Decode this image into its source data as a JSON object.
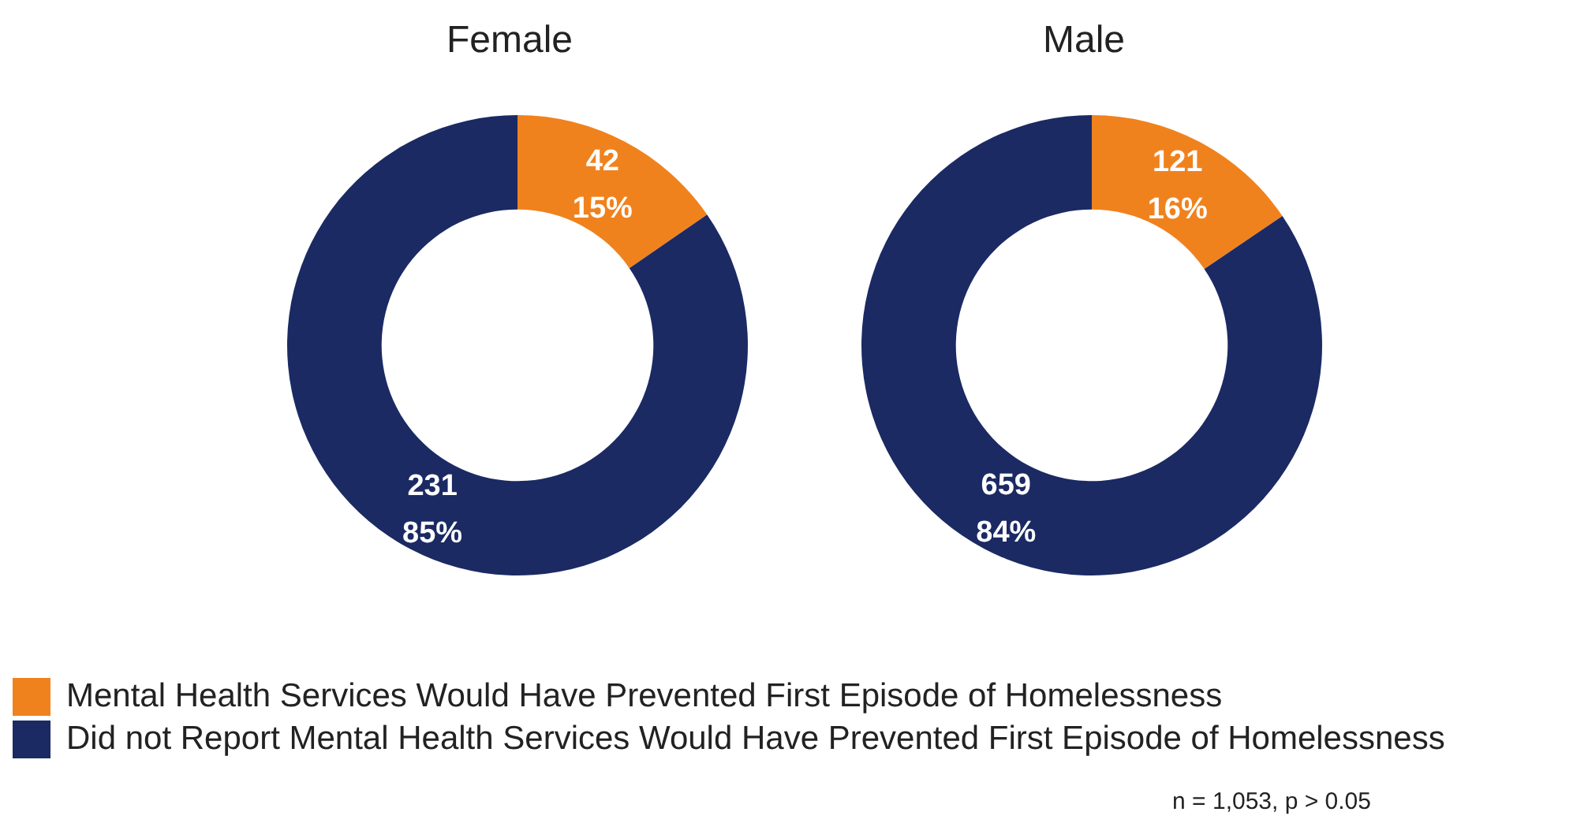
{
  "chart_data": [
    {
      "type": "donut",
      "title": "Female",
      "categories": [
        "Mental Health Services Would Have Prevented First Episode of Homelessness",
        "Did not Report Mental Health Services Would Have Prevented First Episode of Homelessness"
      ],
      "values": [
        42,
        231
      ],
      "colors": [
        "#f0821e",
        "#1b2a63"
      ],
      "value_labels": [
        "42\n15%",
        "231\n85%"
      ],
      "legend": "bottom"
    },
    {
      "type": "donut",
      "title": "Male",
      "categories": [
        null,
        null
      ],
      "values": [
        121,
        659
      ],
      "colors": [
        "#f0821e",
        "#1b2a63"
      ],
      "value_labels": [
        "121\n16%",
        "659\n84%"
      ],
      "annotations": [
        "n = 1,053, p > 0.05"
      ]
    }
  ]
}
